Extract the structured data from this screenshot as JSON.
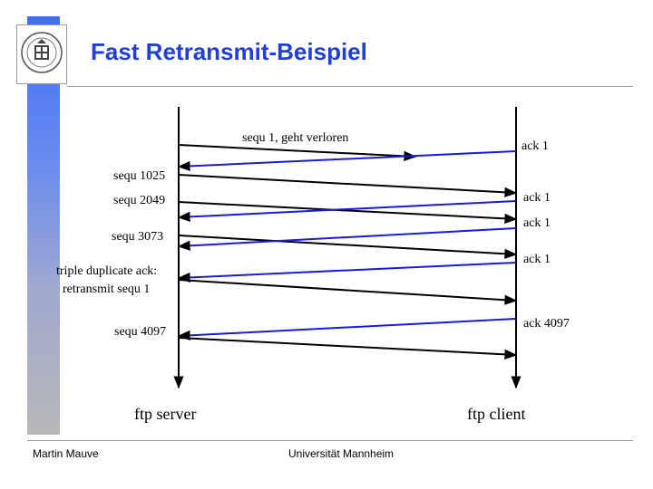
{
  "title": "Fast Retransmit-Beispiel",
  "footer": {
    "left": "Martin Mauve",
    "center": "Universität Mannheim"
  },
  "logo": {
    "icon": "university-seal-icon"
  },
  "colors": {
    "title": "#1f3fd8",
    "sidebar_top": "#3f6ff7",
    "sidebar_bottom": "#b8b8b8",
    "ack_line": "#1a1adc",
    "data_line": "#000000"
  },
  "diagram": {
    "lanes": {
      "server": "ftp server",
      "client": "ftp client"
    },
    "segment_labels": [
      "sequ 1, geht verloren",
      "sequ 1025",
      "sequ 2049",
      "sequ 3073",
      "sequ 4097"
    ],
    "ack_labels": [
      "ack 1",
      "ack 1",
      "ack 1",
      "ack 1",
      "ack 4097"
    ],
    "note": {
      "line1": "triple duplicate ack:",
      "line2": "retransmit sequ 1"
    }
  }
}
